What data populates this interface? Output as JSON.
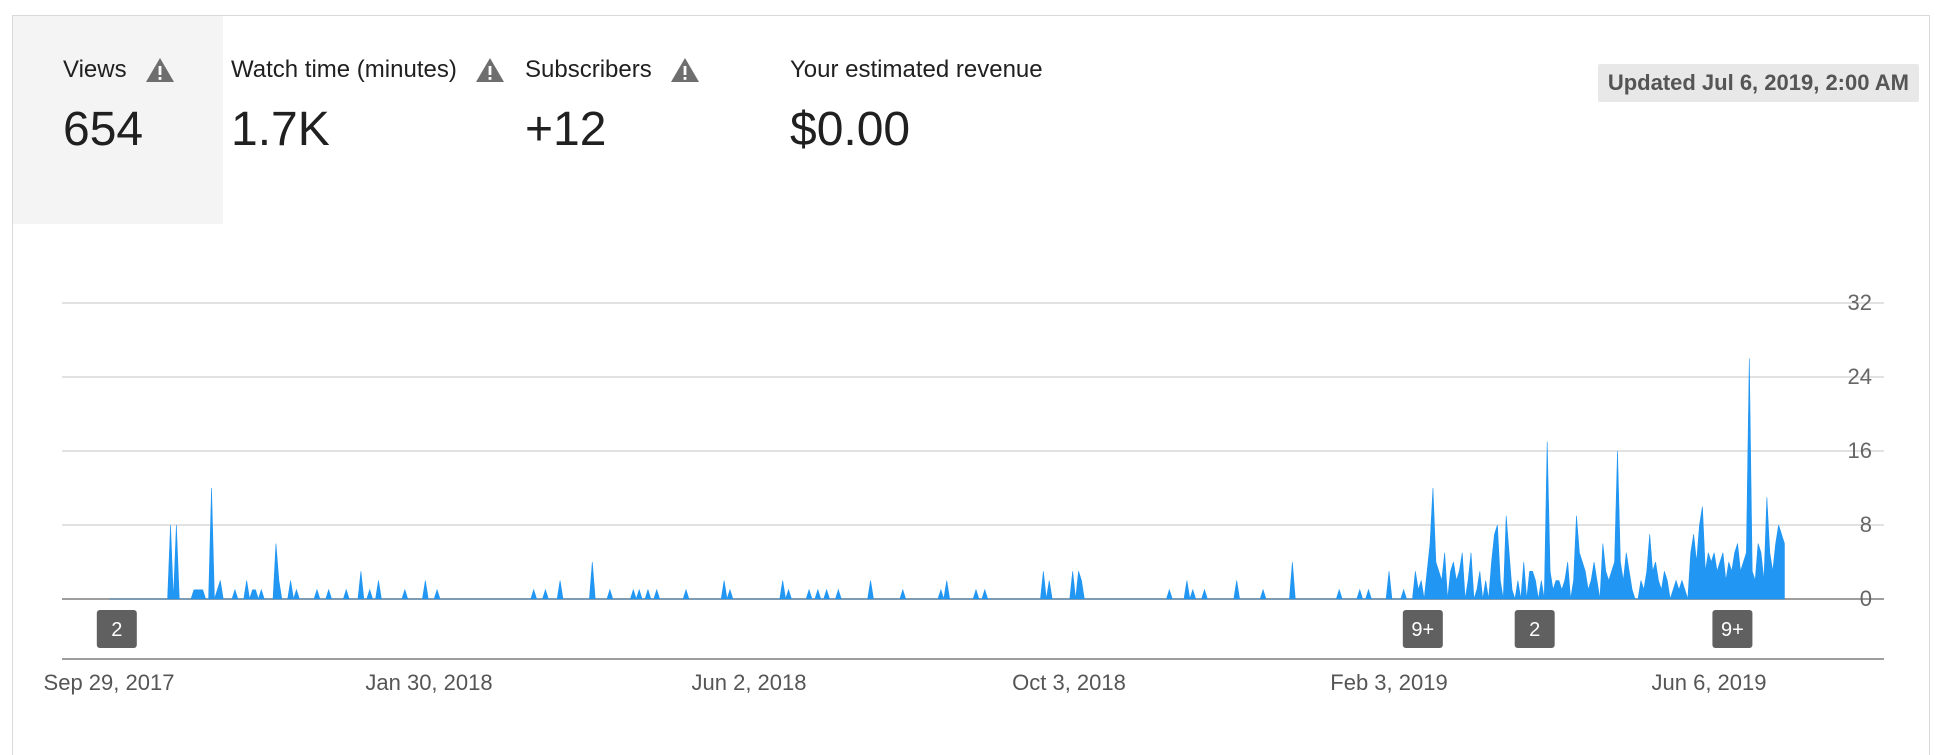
{
  "metrics": [
    {
      "label": "Views",
      "value": "654",
      "warning": true,
      "selected": true
    },
    {
      "label": "Watch time (minutes)",
      "value": "1.7K",
      "warning": true,
      "selected": false
    },
    {
      "label": "Subscribers",
      "value": "+12",
      "warning": true,
      "selected": false
    },
    {
      "label": "Your estimated revenue",
      "value": "$0.00",
      "warning": false,
      "selected": false
    }
  ],
  "updated": "Updated Jul 6, 2019, 2:00 AM",
  "colors": {
    "series": "#2196f3",
    "badge": "#606060",
    "grid": "#d9d9d9",
    "axis": "#9e9e9e"
  },
  "chart_data": {
    "type": "area",
    "title": "",
    "xlabel": "",
    "ylabel": "",
    "ylim": [
      0,
      32
    ],
    "y_ticks": [
      0,
      8,
      16,
      24,
      32
    ],
    "x_ticks": [
      "Sep 29, 2017",
      "Jan 30, 2018",
      "Jun 2, 2018",
      "Oct 3, 2018",
      "Feb 3, 2019",
      "Jun 6, 2019"
    ],
    "x_range": [
      "Sep 29, 2017",
      "Jul 5, 2019"
    ],
    "grid": true,
    "series": [
      {
        "values": [
          0,
          0,
          0,
          0,
          0,
          0,
          0,
          0,
          0,
          0,
          0,
          0,
          0,
          0,
          0,
          0,
          0,
          0,
          0,
          0,
          0,
          8,
          0,
          8,
          0,
          0,
          0,
          0,
          0,
          1,
          1,
          1,
          1,
          0,
          0,
          12,
          0,
          1,
          2,
          0,
          0,
          0,
          0,
          1,
          0,
          0,
          0,
          2,
          0,
          1,
          1,
          0,
          1,
          0,
          0,
          0,
          0,
          6,
          2,
          0,
          0,
          0,
          2,
          0,
          1,
          0,
          0,
          0,
          0,
          0,
          0,
          1,
          0,
          0,
          0,
          1,
          0,
          0,
          0,
          0,
          0,
          1,
          0,
          0,
          0,
          0,
          3,
          0,
          0,
          1,
          0,
          0,
          2,
          0,
          0,
          0,
          0,
          0,
          0,
          0,
          0,
          1,
          0,
          0,
          0,
          0,
          0,
          0,
          2,
          0,
          0,
          0,
          1,
          0,
          0,
          0,
          0,
          0,
          0,
          0,
          0,
          0,
          0,
          0,
          0,
          0,
          0,
          0,
          0,
          0,
          0,
          0,
          0,
          0,
          0,
          0,
          0,
          0,
          0,
          0,
          0,
          0,
          0,
          0,
          0,
          1,
          0,
          0,
          0,
          1,
          0,
          0,
          0,
          0,
          2,
          0,
          0,
          0,
          0,
          0,
          0,
          0,
          0,
          0,
          0,
          4,
          0,
          0,
          0,
          0,
          0,
          1,
          0,
          0,
          0,
          0,
          0,
          0,
          0,
          1,
          0,
          1,
          0,
          0,
          1,
          0,
          0,
          1,
          0,
          0,
          0,
          0,
          0,
          0,
          0,
          0,
          0,
          1,
          0,
          0,
          0,
          0,
          0,
          0,
          0,
          0,
          0,
          0,
          0,
          0,
          2,
          0,
          1,
          0,
          0,
          0,
          0,
          0,
          0,
          0,
          0,
          0,
          0,
          0,
          0,
          0,
          0,
          0,
          0,
          0,
          2,
          0,
          1,
          0,
          0,
          0,
          0,
          0,
          0,
          1,
          0,
          0,
          1,
          0,
          0,
          1,
          0,
          0,
          0,
          1,
          0,
          0,
          0,
          0,
          0,
          0,
          0,
          0,
          0,
          0,
          2,
          0,
          0,
          0,
          0,
          0,
          0,
          0,
          0,
          0,
          0,
          1,
          0,
          0,
          0,
          0,
          0,
          0,
          0,
          0,
          0,
          0,
          0,
          0,
          1,
          0,
          2,
          0,
          0,
          0,
          0,
          0,
          0,
          0,
          0,
          0,
          1,
          0,
          0,
          1,
          0,
          0,
          0,
          0,
          0,
          0,
          0,
          0,
          0,
          0,
          0,
          0,
          0,
          0,
          0,
          0,
          0,
          0,
          0,
          3,
          0,
          2,
          0,
          0,
          0,
          0,
          0,
          0,
          0,
          3,
          0,
          3,
          2,
          0,
          0,
          0,
          0,
          0,
          0,
          0,
          0,
          0,
          0,
          0,
          0,
          0,
          0,
          0,
          0,
          0,
          0,
          0,
          0,
          0,
          0,
          0,
          0,
          0,
          0,
          0,
          0,
          0,
          1,
          0,
          0,
          0,
          0,
          0,
          2,
          0,
          1,
          0,
          0,
          0,
          1,
          0,
          0,
          0,
          0,
          0,
          0,
          0,
          0,
          0,
          0,
          2,
          0,
          0,
          0,
          0,
          0,
          0,
          0,
          0,
          1,
          0,
          0,
          0,
          0,
          0,
          0,
          0,
          0,
          0,
          4,
          0,
          0,
          0,
          0,
          0,
          0,
          0,
          0,
          0,
          0,
          0,
          0,
          0,
          0,
          0,
          1,
          0,
          0,
          0,
          0,
          0,
          0,
          1,
          0,
          0,
          1,
          0,
          0,
          0,
          0,
          0,
          0,
          3,
          0,
          0,
          0,
          0,
          1,
          0,
          0,
          0,
          3,
          1,
          2,
          0,
          3,
          6,
          12,
          4,
          3,
          2,
          5,
          0,
          3,
          4,
          2,
          3,
          5,
          0,
          2,
          5,
          0,
          1,
          3,
          0,
          2,
          0,
          4,
          7,
          8,
          2,
          0,
          9,
          5,
          1,
          0,
          2,
          0,
          4,
          0,
          3,
          3,
          2,
          0,
          2,
          0,
          17,
          3,
          1,
          2,
          2,
          1,
          2,
          4,
          0,
          2,
          9,
          5,
          4,
          3,
          1,
          2,
          4,
          2,
          0,
          6,
          3,
          2,
          3,
          4,
          16,
          4,
          2,
          5,
          3,
          1,
          0,
          0,
          2,
          1,
          3,
          7,
          3,
          4,
          2,
          1,
          3,
          2,
          0,
          1,
          2,
          1,
          2,
          1,
          0,
          5,
          7,
          4,
          8,
          10,
          3,
          5,
          4,
          5,
          3,
          4,
          5,
          2,
          4,
          3,
          5,
          6,
          3,
          4,
          5,
          26,
          3,
          2,
          6,
          5,
          2,
          11,
          5,
          3,
          6,
          8,
          7,
          6
        ]
      }
    ],
    "markers": [
      {
        "label": "2",
        "x": "Oct 2, 2017"
      },
      {
        "label": "9+",
        "x": "Feb 16, 2019"
      },
      {
        "label": "2",
        "x": "Mar 31, 2019"
      },
      {
        "label": "9+",
        "x": "Jun 15, 2019"
      }
    ]
  }
}
